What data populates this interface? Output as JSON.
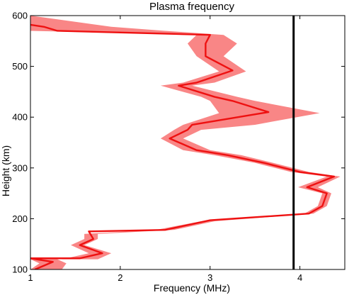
{
  "chart_data": {
    "type": "line",
    "title": "Plasma frequency",
    "xlabel": "Frequency (MHz)",
    "ylabel": "Height (km)",
    "xlim": [
      1,
      4.5
    ],
    "ylim": [
      100,
      600
    ],
    "xticks": [
      1,
      2,
      3,
      4
    ],
    "yticks": [
      100,
      200,
      300,
      400,
      500,
      600
    ],
    "grid": false,
    "series": [
      {
        "kind": "line",
        "color": "#ee1111",
        "points": [
          [
            1.05,
            100
          ],
          [
            1.25,
            115
          ],
          [
            1.0,
            122
          ],
          [
            1.55,
            122
          ],
          [
            1.8,
            132
          ],
          [
            1.55,
            148
          ],
          [
            1.7,
            160
          ],
          [
            1.65,
            175
          ],
          [
            2.5,
            178
          ],
          [
            3.0,
            197
          ],
          [
            4.1,
            210
          ],
          [
            4.25,
            225
          ],
          [
            4.3,
            250
          ],
          [
            4.08,
            262
          ],
          [
            4.38,
            283
          ],
          [
            4.0,
            292
          ],
          [
            3.6,
            310
          ],
          [
            3.2,
            325
          ],
          [
            2.85,
            335
          ],
          [
            2.55,
            358
          ],
          [
            2.75,
            375
          ],
          [
            2.8,
            385
          ],
          [
            3.65,
            410
          ],
          [
            3.25,
            432
          ],
          [
            3.05,
            440
          ],
          [
            2.65,
            462
          ],
          [
            2.85,
            468
          ],
          [
            3.25,
            492
          ],
          [
            2.95,
            520
          ],
          [
            2.95,
            545
          ],
          [
            3.0,
            562
          ],
          [
            1.3,
            570
          ],
          [
            1.15,
            578
          ],
          [
            1.0,
            582
          ]
        ]
      },
      {
        "kind": "band",
        "color": "#f98686",
        "upper": [
          [
            1.35,
            100
          ],
          [
            1.4,
            112
          ],
          [
            1.3,
            120
          ],
          [
            1.75,
            120
          ],
          [
            1.9,
            132
          ],
          [
            1.6,
            148
          ],
          [
            1.75,
            160
          ],
          [
            1.75,
            170
          ],
          [
            2.6,
            178
          ],
          [
            3.05,
            195
          ],
          [
            4.15,
            210
          ],
          [
            4.3,
            225
          ],
          [
            4.35,
            250
          ],
          [
            4.2,
            262
          ],
          [
            4.45,
            283
          ],
          [
            4.1,
            292
          ],
          [
            3.7,
            310
          ],
          [
            3.35,
            325
          ],
          [
            3.0,
            335
          ],
          [
            2.7,
            358
          ],
          [
            2.9,
            375
          ],
          [
            3.5,
            385
          ],
          [
            4.22,
            408
          ],
          [
            3.5,
            432
          ],
          [
            3.3,
            440
          ],
          [
            2.8,
            462
          ],
          [
            3.05,
            468
          ],
          [
            3.4,
            490
          ],
          [
            3.15,
            520
          ],
          [
            3.3,
            545
          ],
          [
            3.15,
            562
          ],
          [
            2.5,
            570
          ],
          [
            1.9,
            578
          ],
          [
            1.0,
            600
          ]
        ],
        "lower": [
          [
            1.0,
            100
          ],
          [
            1.1,
            112
          ],
          [
            1.0,
            120
          ],
          [
            1.35,
            120
          ],
          [
            1.65,
            132
          ],
          [
            1.45,
            148
          ],
          [
            1.6,
            160
          ],
          [
            1.6,
            170
          ],
          [
            2.4,
            178
          ],
          [
            2.9,
            195
          ],
          [
            4.05,
            210
          ],
          [
            4.2,
            225
          ],
          [
            4.25,
            250
          ],
          [
            3.98,
            262
          ],
          [
            4.3,
            283
          ],
          [
            3.9,
            292
          ],
          [
            3.5,
            310
          ],
          [
            3.05,
            325
          ],
          [
            2.7,
            335
          ],
          [
            2.45,
            358
          ],
          [
            2.6,
            375
          ],
          [
            2.7,
            385
          ],
          [
            3.1,
            408
          ],
          [
            3.0,
            432
          ],
          [
            2.9,
            440
          ],
          [
            2.45,
            462
          ],
          [
            2.7,
            468
          ],
          [
            3.1,
            490
          ],
          [
            2.85,
            520
          ],
          [
            2.75,
            545
          ],
          [
            2.85,
            562
          ],
          [
            1.0,
            570
          ],
          [
            1.0,
            578
          ],
          [
            1.0,
            582
          ]
        ]
      },
      {
        "kind": "vline",
        "color": "#000000",
        "x": 3.93
      }
    ]
  }
}
